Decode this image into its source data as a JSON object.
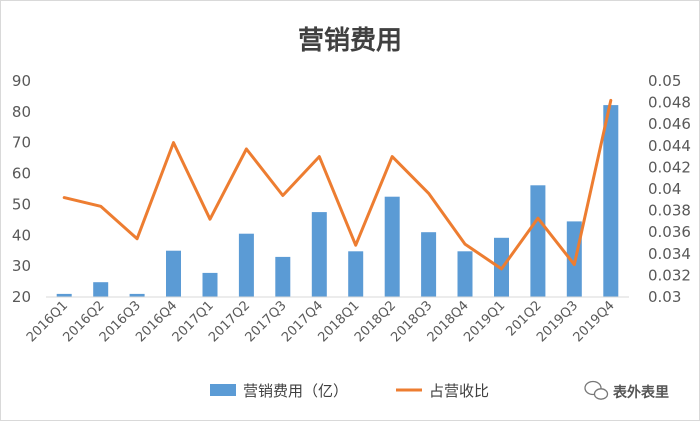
{
  "chart_data": {
    "type": "bar",
    "title": "营销费用",
    "categories": [
      "2016Q1",
      "2016Q2",
      "2016Q3",
      "2016Q4",
      "2017Q1",
      "2017Q2",
      "2017Q3",
      "2017Q4",
      "2018Q1",
      "2018Q2",
      "2018Q3",
      "2018Q4",
      "2019Q1",
      "201Q2",
      "2019Q3",
      "2019Q4"
    ],
    "series": [
      {
        "name": "营销费用（亿）",
        "type": "bar",
        "axis": "left",
        "color": "#5b9bd5",
        "values": [
          21,
          24.8,
          21,
          35,
          27.8,
          40.5,
          33,
          47.5,
          34.8,
          52.5,
          41,
          34.8,
          39.2,
          56.2,
          44.5,
          82.2
        ]
      },
      {
        "name": "占营收比",
        "type": "line",
        "axis": "right",
        "color": "#ed7d31",
        "values": [
          0.0392,
          0.0384,
          0.0354,
          0.0443,
          0.0372,
          0.0437,
          0.0394,
          0.043,
          0.0348,
          0.043,
          0.0396,
          0.0349,
          0.0326,
          0.0373,
          0.033,
          0.0482
        ]
      }
    ],
    "y_left": {
      "min": 20,
      "max": 90,
      "ticks": [
        "20",
        "30",
        "40",
        "50",
        "60",
        "70",
        "80",
        "90"
      ]
    },
    "y_right": {
      "min": 0.03,
      "max": 0.05,
      "ticks": [
        "0.03",
        "0.032",
        "0.034",
        "0.036",
        "0.038",
        "0.04",
        "0.042",
        "0.044",
        "0.046",
        "0.048",
        "0.05"
      ]
    },
    "grid": false,
    "legend": "bottom"
  },
  "watermark": {
    "text": "表外表里",
    "icon": "wechat-icon"
  }
}
